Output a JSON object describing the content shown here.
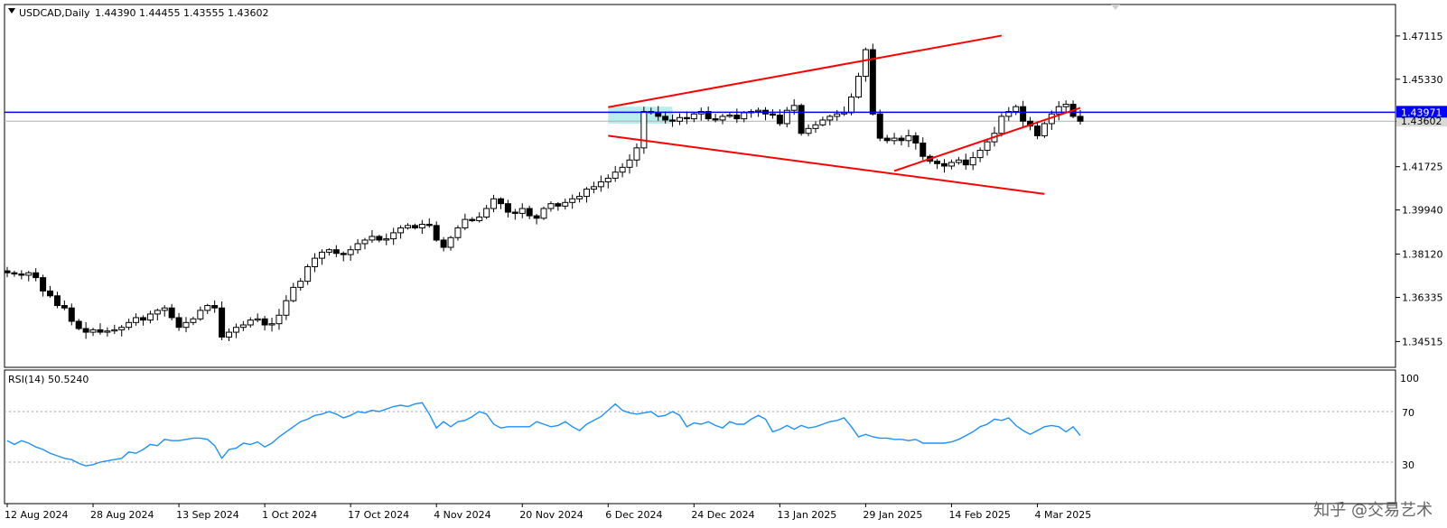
{
  "chart_data": {
    "type": "candlestick",
    "symbol_header": "USDCAD,Daily",
    "ohlc_header": "1.44390 1.44455 1.43555 1.43602",
    "price_axis": {
      "ticks": [
        "1.47115",
        "1.45330",
        "1.43600",
        "1.41725",
        "1.39940",
        "1.38120",
        "1.36335",
        "1.34515"
      ],
      "range": [
        1.336,
        1.483
      ]
    },
    "horizontal_line": {
      "label": "1.43971",
      "value": 1.43971,
      "color": "#0000ff"
    },
    "current_price": {
      "label": "1.43602",
      "value": 1.43602
    },
    "x_ticks": [
      "12 Aug 2024",
      "28 Aug 2024",
      "13 Sep 2024",
      "1 Oct 2024",
      "17 Oct 2024",
      "4 Nov 2024",
      "20 Nov 2024",
      "6 Dec 2024",
      "24 Dec 2024",
      "13 Jan 2025",
      "29 Jan 2025",
      "14 Feb 2025",
      "4 Mar 2025"
    ],
    "tick_bar_index": [
      0,
      12,
      24,
      36,
      48,
      60,
      72,
      84,
      96,
      108,
      120,
      132,
      144
    ],
    "closes": [
      1.3735,
      1.373,
      1.3725,
      1.3735,
      1.3715,
      1.366,
      1.364,
      1.36,
      1.359,
      1.3535,
      1.3505,
      1.349,
      1.35,
      1.349,
      1.3495,
      1.35,
      1.351,
      1.353,
      1.355,
      1.354,
      1.3565,
      1.358,
      1.359,
      1.355,
      1.351,
      1.353,
      1.3545,
      1.358,
      1.36,
      1.359,
      1.347,
      1.349,
      1.351,
      1.352,
      1.354,
      1.3545,
      1.352,
      1.3525,
      1.356,
      1.362,
      1.3675,
      1.37,
      1.376,
      1.3795,
      1.382,
      1.383,
      1.3815,
      1.381,
      1.383,
      1.3855,
      1.387,
      1.3885,
      1.387,
      1.3875,
      1.39,
      1.392,
      1.393,
      1.392,
      1.3935,
      1.393,
      1.387,
      1.384,
      1.388,
      1.392,
      1.3955,
      1.395,
      1.3965,
      1.4,
      1.404,
      1.402,
      1.3985,
      1.398,
      1.4,
      1.397,
      1.396,
      1.4,
      1.402,
      1.401,
      1.4025,
      1.404,
      1.405,
      1.408,
      1.409,
      1.411,
      1.4125,
      1.415,
      1.417,
      1.42,
      1.425,
      1.44,
      1.4395,
      1.438,
      1.4365,
      1.436,
      1.4375,
      1.437,
      1.439,
      1.44,
      1.437,
      1.4365,
      1.438,
      1.4385,
      1.437,
      1.4395,
      1.44,
      1.4405,
      1.439,
      1.4385,
      1.435,
      1.4405,
      1.4425,
      1.431,
      1.433,
      1.4345,
      1.4365,
      1.438,
      1.439,
      1.4395,
      1.446,
      1.4545,
      1.4655,
      1.439,
      1.429,
      1.428,
      1.429,
      1.428,
      1.43,
      1.427,
      1.4215,
      1.4195,
      1.4185,
      1.4175,
      1.419,
      1.42,
      1.418,
      1.421,
      1.424,
      1.4275,
      1.431,
      1.438,
      1.44,
      1.442,
      1.436,
      1.434,
      1.43,
      1.435,
      1.439,
      1.442,
      1.443,
      1.438,
      1.436
    ],
    "trendlines": [
      {
        "from": [
          84,
          1.4418
        ],
        "to": [
          139,
          1.4713
        ],
        "color": "#ff0000"
      },
      {
        "from": [
          84,
          1.43
        ],
        "to": [
          145,
          1.406
        ],
        "color": "#ff0000"
      },
      {
        "from": [
          124,
          1.4155
        ],
        "to": [
          150,
          1.4415
        ],
        "color": "#ff0000"
      }
    ],
    "highlight_box": {
      "from_bar": 84,
      "to_bar": 93,
      "low": 1.435,
      "high": 1.442,
      "color": "#7fe0e0"
    },
    "rsi": {
      "label": "RSI(14) 50.5240",
      "levels": [
        "100",
        "70",
        "30"
      ],
      "range": [
        0,
        100
      ],
      "values": [
        47,
        44,
        47,
        45,
        42,
        40,
        37,
        35,
        33,
        32,
        29,
        27,
        28,
        30,
        31,
        32,
        33,
        38,
        37,
        40,
        44,
        43,
        48,
        47,
        47,
        48,
        49,
        49,
        48,
        43,
        33,
        40,
        41,
        45,
        44,
        46,
        42,
        45,
        50,
        54,
        58,
        62,
        64,
        67,
        68,
        70,
        68,
        65,
        67,
        70,
        69,
        71,
        70,
        72,
        74,
        75,
        74,
        76,
        77,
        68,
        57,
        62,
        58,
        62,
        63,
        66,
        70,
        68,
        60,
        57,
        58,
        58,
        58,
        58,
        62,
        60,
        58,
        59,
        62,
        58,
        55,
        60,
        63,
        66,
        71,
        76,
        71,
        69,
        68,
        69,
        70,
        66,
        67,
        70,
        67,
        58,
        61,
        60,
        62,
        59,
        57,
        62,
        60,
        60,
        64,
        67,
        64,
        54,
        56,
        59,
        56,
        59,
        57,
        58,
        60,
        62,
        63,
        65,
        58,
        50,
        52,
        50,
        49,
        49,
        48,
        48,
        47,
        48,
        45,
        45,
        45,
        45,
        46,
        48,
        51,
        54,
        58,
        60,
        64,
        63,
        65,
        59,
        55,
        52,
        55,
        58,
        59,
        58,
        54,
        58,
        51
      ]
    }
  },
  "watermark": "知乎 @交易艺术",
  "colors": {
    "bull_fill": "#ffffff",
    "bear_fill": "#000000",
    "candle_outline": "#000000",
    "rsi_line": "#1e90ff",
    "trendline": "#ff0000",
    "h_line": "#0000ff",
    "current_price_line": "#b0b0b0"
  }
}
